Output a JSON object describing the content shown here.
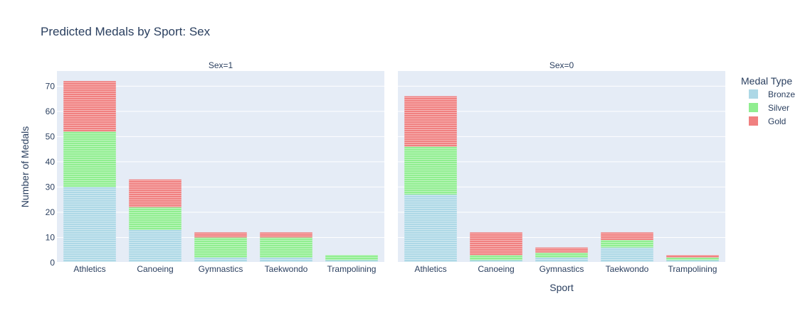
{
  "chart_data": {
    "type": "bar",
    "barmode": "stack",
    "title": "Predicted Medals by Sport: Sex",
    "xlabel": "Sport",
    "ylabel": "Number of Medals",
    "ylim": [
      0,
      76
    ],
    "yticks": [
      0,
      10,
      20,
      30,
      40,
      50,
      60,
      70
    ],
    "legend": {
      "title": "Medal Type",
      "placement": "top-right",
      "entries": [
        "Bronze",
        "Silver",
        "Gold"
      ]
    },
    "colors": {
      "Bronze": "#add8e6",
      "Silver": "#90ee90",
      "Gold": "#f08080",
      "plot_bg": "#e5ecf6"
    },
    "categories": [
      "Athletics",
      "Canoeing",
      "Gymnastics",
      "Taekwondo",
      "Trampolining"
    ],
    "facets": [
      {
        "label": "Sex=1",
        "series": [
          {
            "name": "Bronze",
            "values": [
              30,
              13,
              2,
              2,
              1
            ]
          },
          {
            "name": "Silver",
            "values": [
              22,
              9,
              8,
              8,
              2
            ]
          },
          {
            "name": "Gold",
            "values": [
              20,
              11,
              2,
              2,
              0
            ]
          }
        ]
      },
      {
        "label": "Sex=0",
        "series": [
          {
            "name": "Bronze",
            "values": [
              27,
              1,
              2,
              6,
              1
            ]
          },
          {
            "name": "Silver",
            "values": [
              19,
              2,
              2,
              3,
              1
            ]
          },
          {
            "name": "Gold",
            "values": [
              20,
              9,
              2,
              3,
              1
            ]
          }
        ]
      }
    ]
  }
}
